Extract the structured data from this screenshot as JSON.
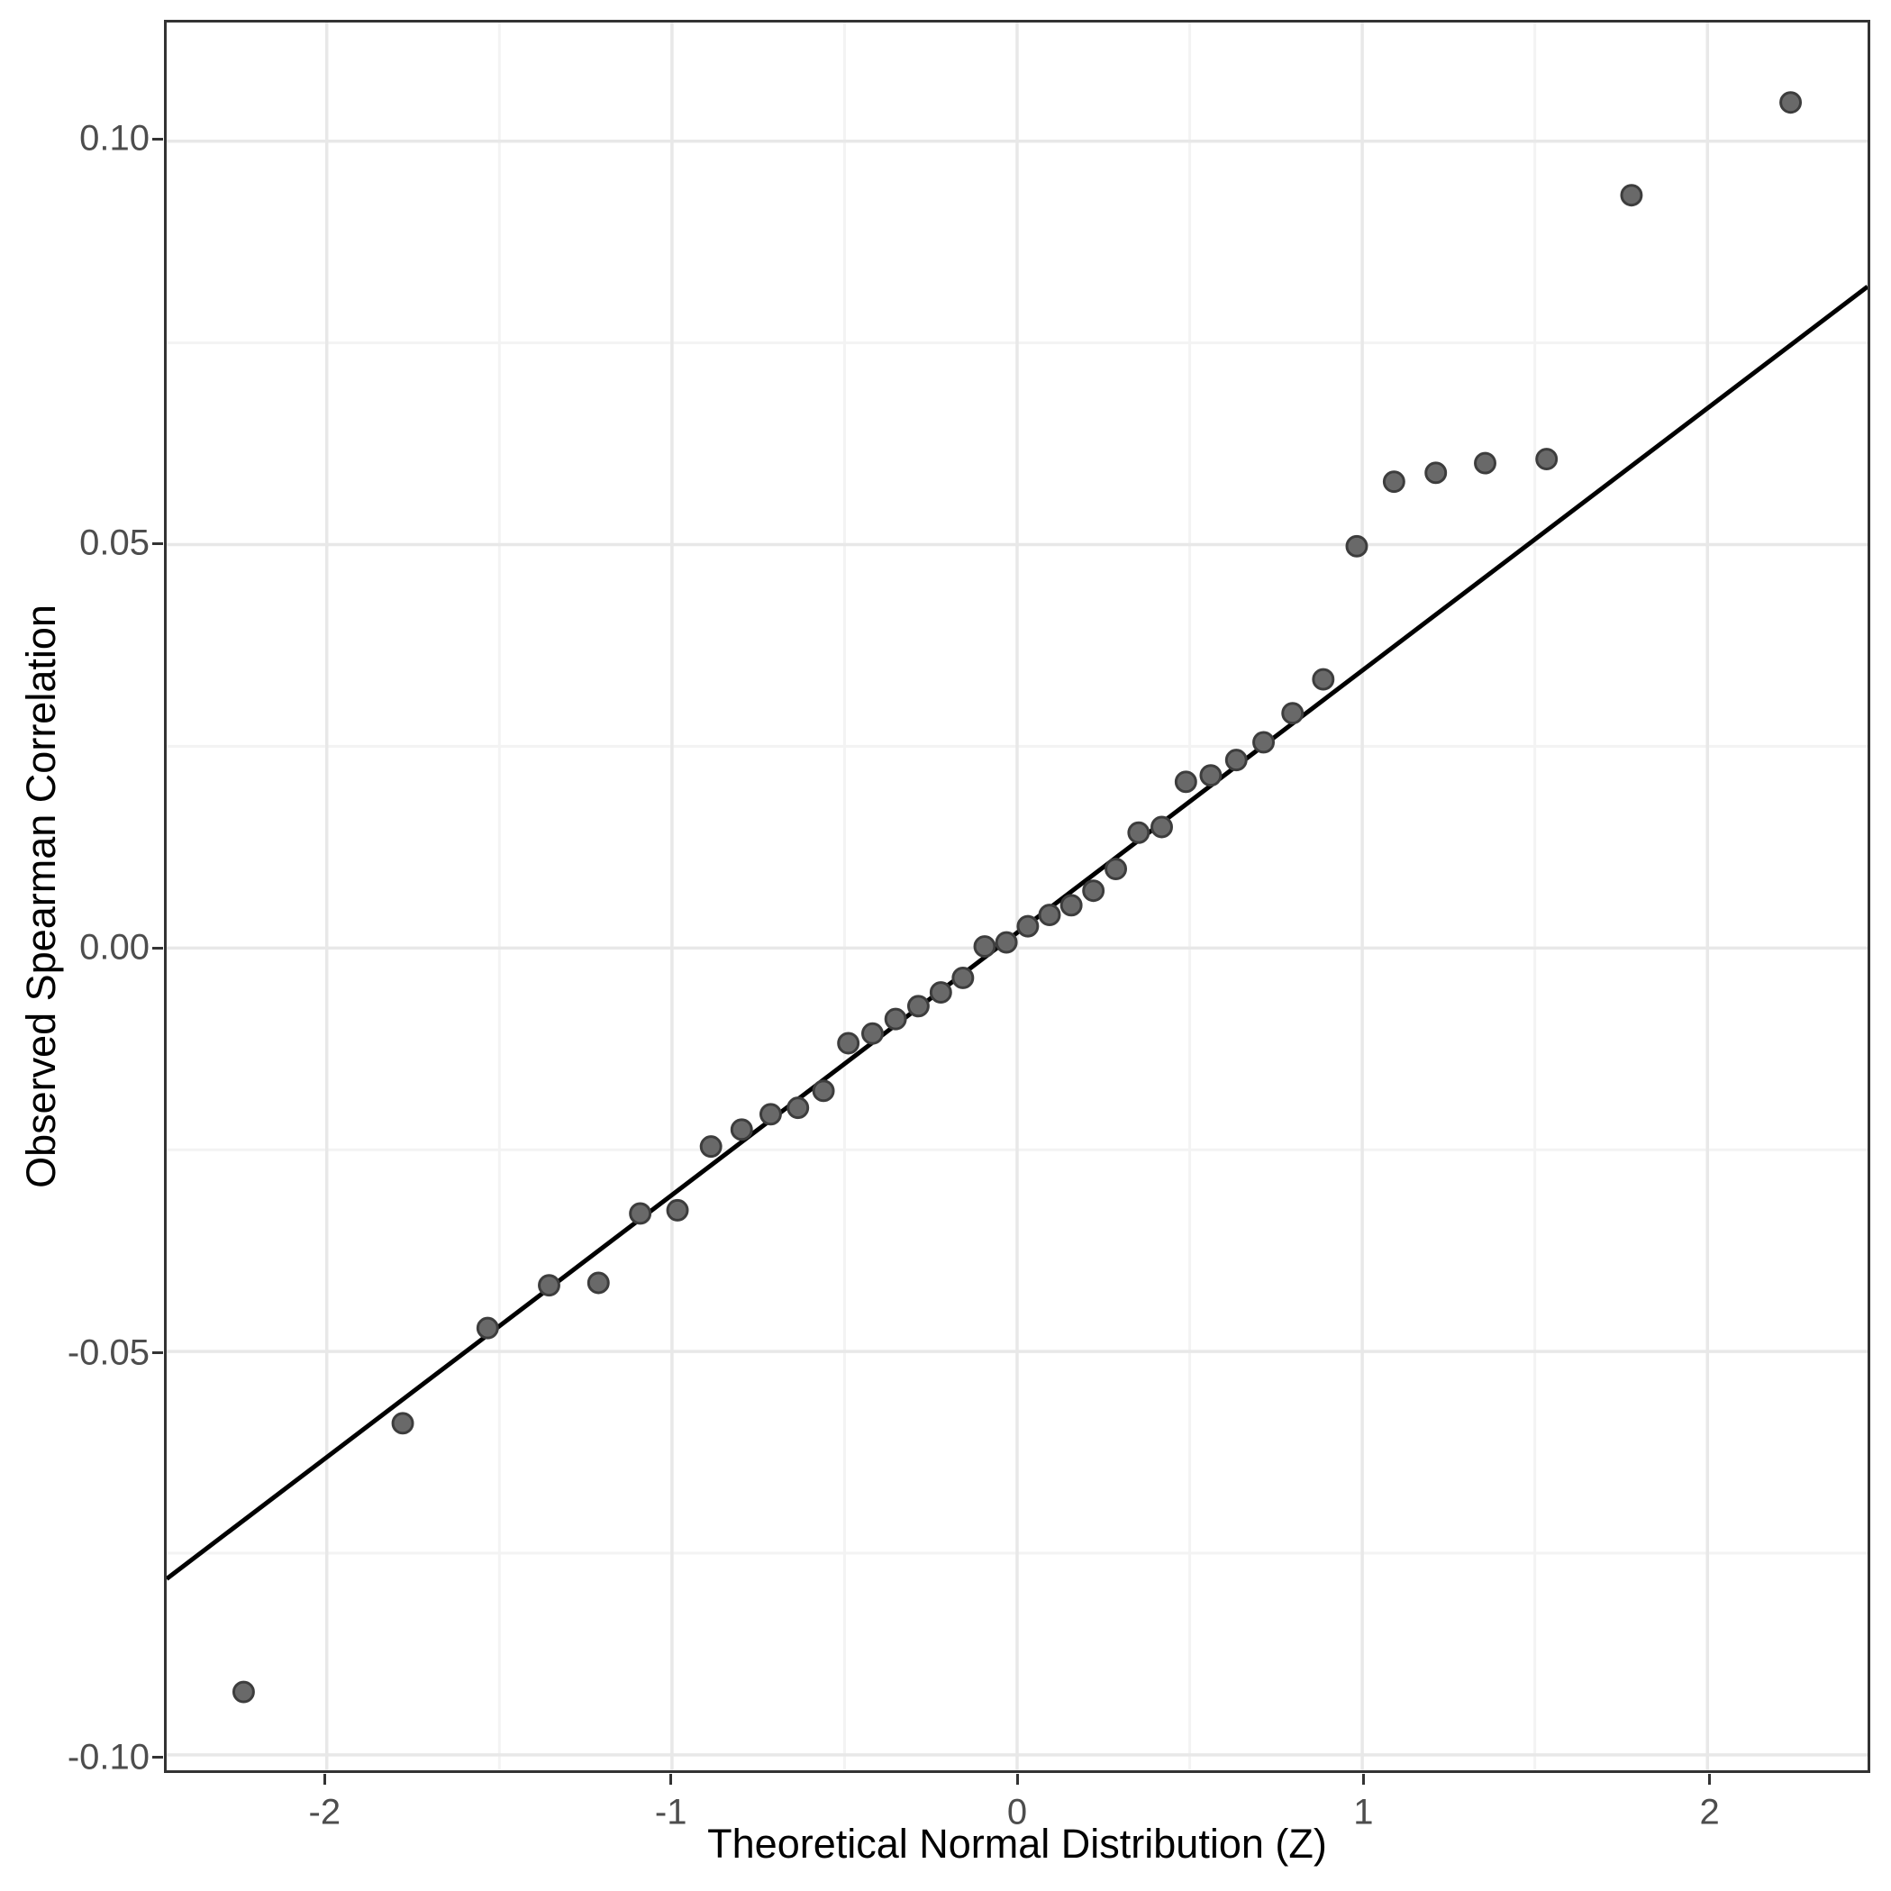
{
  "chart_data": {
    "type": "scatter",
    "title": "",
    "xlabel": "Theoretical Normal Distribution (Z)",
    "ylabel": "Observed Spearman Correlation",
    "xlim": [
      -2.464,
      2.464
    ],
    "ylim": [
      -0.1019,
      0.1147
    ],
    "grid": "on",
    "legend": "none",
    "x_ticks": [
      -2,
      -1,
      0,
      1,
      2
    ],
    "x_tick_labels": [
      "-2",
      "-1",
      "0",
      "1",
      "2"
    ],
    "y_ticks": [
      -0.1,
      -0.05,
      0.0,
      0.05,
      0.1
    ],
    "y_tick_labels": [
      "-0.10",
      "-0.05",
      "0.00",
      "0.05",
      "0.10"
    ],
    "x_minor_gridlines": [
      -1.5,
      -0.5,
      0.5,
      1.5
    ],
    "y_minor_gridlines": [
      -0.075,
      -0.025,
      0.025,
      0.075
    ],
    "qq_line": {
      "slope": 0.0325,
      "intercept": 0.0019
    },
    "points": [
      [
        -2.241,
        -0.0922
      ],
      [
        -1.78,
        -0.0589
      ],
      [
        -1.534,
        -0.0471
      ],
      [
        -1.356,
        -0.0418
      ],
      [
        -1.213,
        -0.0415
      ],
      [
        -1.092,
        -0.0329
      ],
      [
        -0.984,
        -0.0325
      ],
      [
        -0.887,
        -0.0246
      ],
      [
        -0.798,
        -0.0225
      ],
      [
        -0.714,
        -0.0206
      ],
      [
        -0.635,
        -0.0198
      ],
      [
        -0.561,
        -0.0177
      ],
      [
        -0.489,
        -0.0118
      ],
      [
        -0.419,
        -0.0106
      ],
      [
        -0.352,
        -0.0088
      ],
      [
        -0.286,
        -0.0072
      ],
      [
        -0.221,
        -0.0055
      ],
      [
        -0.157,
        -0.0037
      ],
      [
        -0.094,
        0.0002
      ],
      [
        -0.031,
        0.0007
      ],
      [
        0.031,
        0.0027
      ],
      [
        0.094,
        0.0041
      ],
      [
        0.157,
        0.0053
      ],
      [
        0.221,
        0.0071
      ],
      [
        0.286,
        0.0098
      ],
      [
        0.352,
        0.0143
      ],
      [
        0.419,
        0.015
      ],
      [
        0.489,
        0.0206
      ],
      [
        0.561,
        0.0214
      ],
      [
        0.635,
        0.0233
      ],
      [
        0.714,
        0.0255
      ],
      [
        0.798,
        0.0291
      ],
      [
        0.887,
        0.0333
      ],
      [
        0.984,
        0.0498
      ],
      [
        1.092,
        0.0578
      ],
      [
        1.213,
        0.0589
      ],
      [
        1.356,
        0.0601
      ],
      [
        1.534,
        0.0606
      ],
      [
        1.78,
        0.0933
      ],
      [
        2.241,
        0.1048
      ]
    ]
  },
  "styles": {
    "background": "#ffffff",
    "panel_border": "#333333",
    "grid_major": "#e8e8e8",
    "grid_minor": "#f3f3f3",
    "point_fill": "#696969",
    "point_stroke": "#3d3d3d",
    "line_color": "#000000",
    "tick_color": "#333333",
    "tick_label_color": "#4d4d4d",
    "axis_title_color": "#000000"
  }
}
